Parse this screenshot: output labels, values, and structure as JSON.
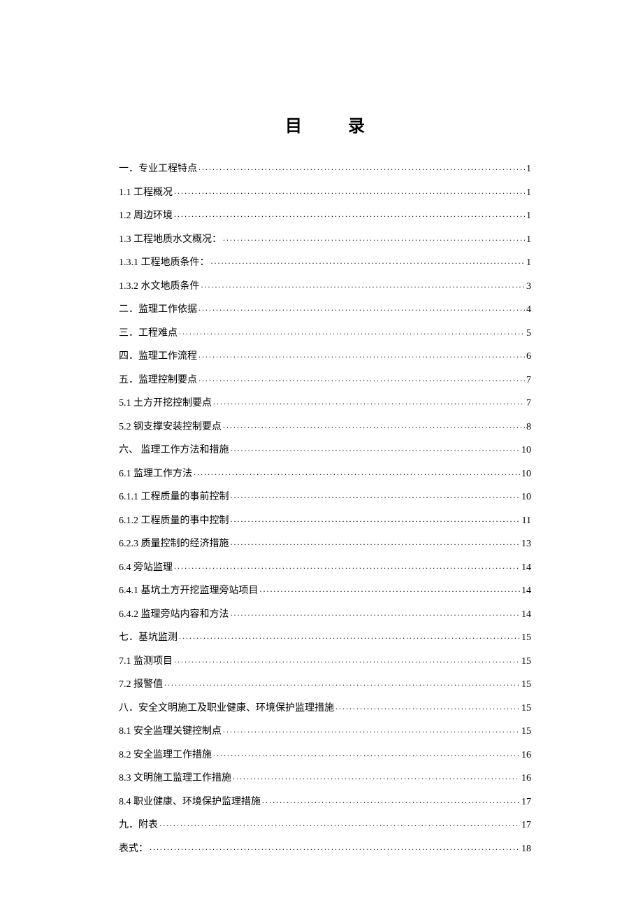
{
  "title": "目 录",
  "entries": [
    {
      "label": "一．专业工程特点",
      "page": "1"
    },
    {
      "label": "1.1 工程概况",
      "page": "1"
    },
    {
      "label": "1.2 周边环境",
      "page": "1"
    },
    {
      "label": "1.3 工程地质水文概况：",
      "page": "1"
    },
    {
      "label": "1.3.1 工程地质条件：",
      "page": "1"
    },
    {
      "label": "1.3.2 水文地质条件",
      "page": "3"
    },
    {
      "label": "二．监理工作依据",
      "page": "4"
    },
    {
      "label": "三．工程难点",
      "page": "5"
    },
    {
      "label": "四．监理工作流程",
      "page": "6"
    },
    {
      "label": "五．监理控制要点",
      "page": "7"
    },
    {
      "label": "5.1 土方开挖控制要点",
      "page": "7"
    },
    {
      "label": "5.2 钢支撑安装控制要点",
      "page": "8"
    },
    {
      "label": "六、 监理工作方法和措施",
      "page": "10"
    },
    {
      "label": "6.1 监理工作方法",
      "page": "10"
    },
    {
      "label": "6.1.1 工程质量的事前控制",
      "page": "10"
    },
    {
      "label": "6.1.2 工程质量的事中控制",
      "page": "11"
    },
    {
      "label": "6.2.3 质量控制的经济措施",
      "page": "13"
    },
    {
      "label": "6.4 旁站监理",
      "page": "14"
    },
    {
      "label": "6.4.1 基坑土方开挖监理旁站项目",
      "page": "14"
    },
    {
      "label": "6.4.2 监理旁站内容和方法",
      "page": "14"
    },
    {
      "label": "七．基坑监测",
      "page": "15"
    },
    {
      "label": "7.1 监测项目",
      "page": "15"
    },
    {
      "label": "7.2 报警值",
      "page": "15"
    },
    {
      "label": "八．安全文明施工及职业健康、环境保护监理措施",
      "page": "15"
    },
    {
      "label": "8.1 安全监理关键控制点",
      "page": "15"
    },
    {
      "label": "8.2 安全监理工作措施",
      "page": "16"
    },
    {
      "label": "8.3 文明施工监理工作措施",
      "page": "16"
    },
    {
      "label": "8.4 职业健康、环境保护监理措施",
      "page": "17"
    },
    {
      "label": "九．附表",
      "page": "17"
    },
    {
      "label": "表式：",
      "page": "18"
    }
  ]
}
